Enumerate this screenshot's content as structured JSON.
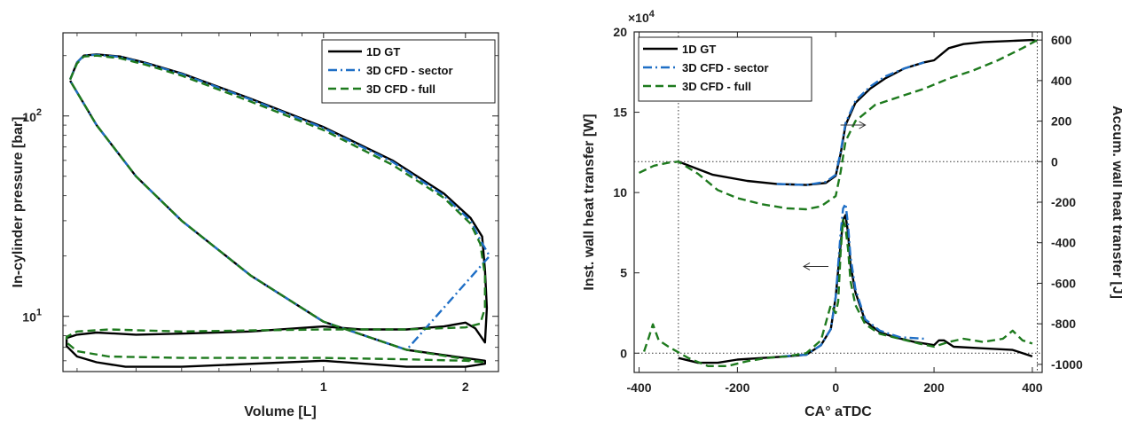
{
  "chart_data": [
    {
      "type": "line",
      "xlabel": "Volume [L]",
      "ylabel": "In-cylinder pressure [bar]",
      "x_scale": "log",
      "y_scale": "log",
      "xlim": [
        0.28,
        2.35
      ],
      "ylim": [
        5.3,
        260
      ],
      "x_ticks": [
        {
          "value": 1,
          "label": "1"
        },
        {
          "value": 2,
          "label": "2"
        }
      ],
      "y_ticks": [
        {
          "value": 10,
          "label": "10",
          "exp": "1"
        },
        {
          "value": 100,
          "label": "10",
          "exp": "2"
        }
      ],
      "legend_position": "top-right",
      "series": [
        {
          "name": "1D GT",
          "color": "#000000",
          "dash": "solid",
          "points": [
            [
              0.29,
              152
            ],
            [
              0.3,
              185
            ],
            [
              0.31,
              200
            ],
            [
              0.33,
              203
            ],
            [
              0.37,
              198
            ],
            [
              0.42,
              184
            ],
            [
              0.5,
              163
            ],
            [
              0.7,
              122
            ],
            [
              1.0,
              88
            ],
            [
              1.4,
              60
            ],
            [
              1.8,
              41
            ],
            [
              2.05,
              31
            ],
            [
              2.17,
              25
            ],
            [
              2.2,
              17
            ],
            [
              2.22,
              11
            ],
            [
              2.2,
              7.4
            ],
            [
              2.1,
              8.7
            ],
            [
              2.0,
              9.3
            ],
            [
              1.8,
              8.9
            ],
            [
              1.5,
              8.6
            ],
            [
              1.2,
              8.6
            ],
            [
              1.0,
              8.9
            ],
            [
              0.7,
              8.4
            ],
            [
              0.5,
              8.2
            ],
            [
              0.4,
              8.1
            ],
            [
              0.33,
              8.3
            ],
            [
              0.3,
              8.1
            ],
            [
              0.285,
              7.8
            ],
            [
              0.285,
              7.1
            ],
            [
              0.3,
              6.3
            ],
            [
              0.33,
              5.9
            ],
            [
              0.38,
              5.6
            ],
            [
              0.5,
              5.6
            ],
            [
              1.0,
              6.0
            ],
            [
              1.5,
              5.6
            ],
            [
              2.0,
              5.6
            ],
            [
              2.2,
              5.8
            ],
            [
              2.2,
              6.0
            ],
            [
              1.5,
              6.8
            ],
            [
              1.0,
              9.4
            ],
            [
              0.7,
              16
            ],
            [
              0.5,
              30
            ],
            [
              0.4,
              50
            ],
            [
              0.33,
              90
            ],
            [
              0.29,
              150
            ]
          ]
        },
        {
          "name": "3D CFD - sector",
          "color": "#1f6fc6",
          "dash": "dashdot",
          "points": [
            [
              0.29,
              152
            ],
            [
              0.3,
              185
            ],
            [
              0.31,
              200
            ],
            [
              0.33,
              202
            ],
            [
              0.37,
              197
            ],
            [
              0.42,
              183
            ],
            [
              0.5,
              162
            ],
            [
              0.7,
              121
            ],
            [
              1.0,
              87
            ],
            [
              1.4,
              59
            ],
            [
              1.8,
              40
            ],
            [
              2.05,
              30
            ],
            [
              2.15,
              24
            ],
            [
              2.25,
              20
            ],
            [
              1.5,
              6.8
            ],
            [
              1.0,
              9.4
            ],
            [
              0.7,
              16
            ],
            [
              0.5,
              30
            ],
            [
              0.4,
              50
            ],
            [
              0.33,
              90
            ],
            [
              0.29,
              150
            ]
          ]
        },
        {
          "name": "3D CFD - full",
          "color": "#1e7a1e",
          "dash": "dashed",
          "points": [
            [
              0.29,
              152
            ],
            [
              0.3,
              183
            ],
            [
              0.31,
              198
            ],
            [
              0.33,
              200
            ],
            [
              0.37,
              194
            ],
            [
              0.42,
              180
            ],
            [
              0.5,
              159
            ],
            [
              0.7,
              118
            ],
            [
              1.0,
              85
            ],
            [
              1.4,
              57
            ],
            [
              1.8,
              39
            ],
            [
              2.05,
              29
            ],
            [
              2.15,
              23
            ],
            [
              2.2,
              16
            ],
            [
              2.2,
              11
            ],
            [
              2.15,
              9.2
            ],
            [
              2.0,
              8.8
            ],
            [
              1.5,
              8.6
            ],
            [
              1.0,
              8.6
            ],
            [
              0.7,
              8.5
            ],
            [
              0.5,
              8.4
            ],
            [
              0.35,
              8.6
            ],
            [
              0.3,
              8.4
            ],
            [
              0.285,
              7.9
            ],
            [
              0.285,
              7.4
            ],
            [
              0.3,
              6.7
            ],
            [
              0.35,
              6.3
            ],
            [
              0.5,
              6.2
            ],
            [
              1.0,
              6.2
            ],
            [
              1.5,
              6.1
            ],
            [
              2.0,
              6.0
            ],
            [
              2.2,
              5.9
            ],
            [
              1.5,
              6.8
            ],
            [
              1.0,
              9.4
            ],
            [
              0.7,
              16
            ],
            [
              0.5,
              30
            ],
            [
              0.4,
              50
            ],
            [
              0.33,
              90
            ],
            [
              0.29,
              150
            ]
          ]
        }
      ]
    },
    {
      "type": "line",
      "xlabel": "CA° aTDC",
      "ylabel": "Inst. wall heat transfer [W]",
      "y2label": "Accum. wall heat transfer [J]",
      "xlim": [
        -410,
        420
      ],
      "ylim": [
        -1.2,
        20
      ],
      "y2lim": [
        -1040,
        640
      ],
      "y_exponent_label": "×10",
      "y_exponent_power": "4",
      "x_ticks": [
        {
          "value": -400,
          "label": "-400"
        },
        {
          "value": -200,
          "label": "-200"
        },
        {
          "value": 0,
          "label": "0"
        },
        {
          "value": 200,
          "label": "200"
        },
        {
          "value": 400,
          "label": "400"
        }
      ],
      "y_ticks": [
        {
          "value": 0,
          "label": "0"
        },
        {
          "value": 5,
          "label": "5"
        },
        {
          "value": 10,
          "label": "10"
        },
        {
          "value": 15,
          "label": "15"
        },
        {
          "value": 20,
          "label": "20"
        }
      ],
      "y2_ticks": [
        {
          "value": -1000,
          "label": "-1000"
        },
        {
          "value": -800,
          "label": "-800"
        },
        {
          "value": -600,
          "label": "-600"
        },
        {
          "value": -400,
          "label": "-400"
        },
        {
          "value": -200,
          "label": "-200"
        },
        {
          "value": 0,
          "label": "0"
        },
        {
          "value": 200,
          "label": "200"
        },
        {
          "value": 400,
          "label": "400"
        },
        {
          "value": 600,
          "label": "600"
        }
      ],
      "reference_lines": {
        "vertical": [
          -320,
          410
        ],
        "horizontal_y": [
          0
        ],
        "horizontal_y2": [
          0
        ]
      },
      "legend_position": "top-left",
      "arrows": [
        {
          "direction": "right",
          "x": 35,
          "y": 14.2
        },
        {
          "direction": "left",
          "x": -40,
          "y": 5.4
        }
      ],
      "series": [
        {
          "name": "1D GT",
          "color": "#000000",
          "dash": "solid",
          "accum_points": [
            [
              -320,
              0
            ],
            [
              -250,
              -65
            ],
            [
              -180,
              -95
            ],
            [
              -120,
              -110
            ],
            [
              -60,
              -115
            ],
            [
              -20,
              -105
            ],
            [
              0,
              -70
            ],
            [
              10,
              40
            ],
            [
              20,
              180
            ],
            [
              40,
              290
            ],
            [
              70,
              360
            ],
            [
              100,
              410
            ],
            [
              140,
              460
            ],
            [
              180,
              490
            ],
            [
              200,
              500
            ],
            [
              230,
              560
            ],
            [
              260,
              580
            ],
            [
              300,
              590
            ],
            [
              350,
              595
            ],
            [
              400,
              600
            ],
            [
              410,
              595
            ]
          ],
          "inst_points": [
            [
              -320,
              -0.3
            ],
            [
              -280,
              -0.6
            ],
            [
              -240,
              -0.6
            ],
            [
              -200,
              -0.4
            ],
            [
              -150,
              -0.3
            ],
            [
              -100,
              -0.2
            ],
            [
              -60,
              -0.1
            ],
            [
              -30,
              0.5
            ],
            [
              -10,
              1.5
            ],
            [
              0,
              3.5
            ],
            [
              10,
              6.8
            ],
            [
              15,
              8.3
            ],
            [
              20,
              8.6
            ],
            [
              25,
              7.5
            ],
            [
              30,
              5.5
            ],
            [
              40,
              3.8
            ],
            [
              60,
              2.0
            ],
            [
              90,
              1.3
            ],
            [
              120,
              1.0
            ],
            [
              160,
              0.7
            ],
            [
              200,
              0.5
            ],
            [
              210,
              0.8
            ],
            [
              220,
              0.8
            ],
            [
              240,
              0.4
            ],
            [
              300,
              0.3
            ],
            [
              360,
              0.2
            ],
            [
              400,
              -0.2
            ]
          ]
        },
        {
          "name": "3D CFD - sector",
          "color": "#1f6fc6",
          "dash": "dashdot",
          "accum_points": [
            [
              -120,
              -110
            ],
            [
              -60,
              -115
            ],
            [
              -20,
              -100
            ],
            [
              0,
              -65
            ],
            [
              10,
              50
            ],
            [
              20,
              190
            ],
            [
              40,
              300
            ],
            [
              70,
              370
            ],
            [
              100,
              420
            ],
            [
              140,
              460
            ],
            [
              180,
              490
            ]
          ],
          "inst_points": [
            [
              -110,
              -0.2
            ],
            [
              -60,
              -0.1
            ],
            [
              -30,
              0.5
            ],
            [
              -10,
              1.5
            ],
            [
              0,
              3.5
            ],
            [
              10,
              7.5
            ],
            [
              15,
              9.0
            ],
            [
              20,
              9.3
            ],
            [
              25,
              8.0
            ],
            [
              30,
              6.0
            ],
            [
              40,
              4.0
            ],
            [
              60,
              2.1
            ],
            [
              90,
              1.4
            ],
            [
              130,
              1.0
            ],
            [
              180,
              0.9
            ]
          ]
        },
        {
          "name": "3D CFD - full",
          "color": "#1e7a1e",
          "dash": "dashed",
          "accum_points": [
            [
              -400,
              -55
            ],
            [
              -370,
              -20
            ],
            [
              -340,
              -5
            ],
            [
              -320,
              0
            ],
            [
              -280,
              -60
            ],
            [
              -240,
              -140
            ],
            [
              -200,
              -180
            ],
            [
              -150,
              -210
            ],
            [
              -100,
              -230
            ],
            [
              -60,
              -235
            ],
            [
              -30,
              -220
            ],
            [
              0,
              -170
            ],
            [
              10,
              -50
            ],
            [
              20,
              100
            ],
            [
              40,
              200
            ],
            [
              80,
              280
            ],
            [
              130,
              320
            ],
            [
              180,
              360
            ],
            [
              230,
              410
            ],
            [
              280,
              450
            ],
            [
              330,
              500
            ],
            [
              380,
              560
            ],
            [
              410,
              600
            ]
          ],
          "inst_points": [
            [
              -390,
              0.1
            ],
            [
              -380,
              1.0
            ],
            [
              -372,
              1.8
            ],
            [
              -360,
              0.8
            ],
            [
              -340,
              0.4
            ],
            [
              -300,
              -0.3
            ],
            [
              -260,
              -0.8
            ],
            [
              -220,
              -0.8
            ],
            [
              -180,
              -0.5
            ],
            [
              -140,
              -0.3
            ],
            [
              -100,
              -0.2
            ],
            [
              -60,
              0.0
            ],
            [
              -30,
              0.8
            ],
            [
              -10,
              3.0
            ],
            [
              0,
              2.5
            ],
            [
              5,
              3.2
            ],
            [
              10,
              6.3
            ],
            [
              15,
              8.3
            ],
            [
              20,
              7.8
            ],
            [
              25,
              6.5
            ],
            [
              30,
              4.5
            ],
            [
              40,
              3.0
            ],
            [
              60,
              1.8
            ],
            [
              90,
              1.2
            ],
            [
              130,
              0.9
            ],
            [
              170,
              0.6
            ],
            [
              200,
              0.4
            ],
            [
              230,
              0.7
            ],
            [
              260,
              0.9
            ],
            [
              300,
              0.7
            ],
            [
              340,
              0.9
            ],
            [
              360,
              1.4
            ],
            [
              380,
              0.8
            ],
            [
              400,
              0.6
            ]
          ]
        }
      ]
    }
  ]
}
